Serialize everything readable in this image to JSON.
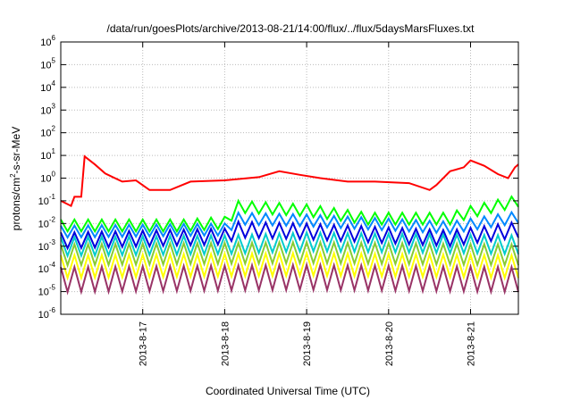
{
  "chart_data": {
    "type": "line",
    "title": "/data/run/goesPlots/archive/2013-08-21/14:00/flux/../flux/5daysMarsFluxes.txt",
    "xlabel": "Coordinated Universal Time (UTC)",
    "ylabel": "protons/cm2-s-sr-MeV",
    "ylabel_parts": {
      "pre": "protons/cm",
      "sup": "2",
      "post": "-s-sr-MeV"
    },
    "yscale": "log",
    "ylim": [
      1e-06,
      1000000.0
    ],
    "ytick_exponents": [
      -6,
      -5,
      -4,
      -3,
      -2,
      -1,
      0,
      1,
      2,
      3,
      4,
      5,
      6
    ],
    "ytick_base": "10",
    "xlim": [
      "2013-08-16T00:00",
      "2013-08-21T14:00"
    ],
    "xticks": [
      {
        "t": "2013-08-17T00:00",
        "label": "2013-8-17"
      },
      {
        "t": "2013-08-18T00:00",
        "label": "2013-8-18"
      },
      {
        "t": "2013-08-19T00:00",
        "label": "2013-8-19"
      },
      {
        "t": "2013-08-20T00:00",
        "label": "2013-8-20"
      },
      {
        "t": "2013-08-21T00:00",
        "label": "2013-8-21"
      }
    ],
    "grid": true,
    "sample_step_hours": 2,
    "series": [
      {
        "color": "#ff0000",
        "points": [
          [
            "2013-08-16T00:00",
            0.1
          ],
          [
            "2013-08-16T03:00",
            0.06
          ],
          [
            "2013-08-16T04:00",
            0.15
          ],
          [
            "2013-08-16T06:00",
            0.15
          ],
          [
            "2013-08-16T07:00",
            9
          ],
          [
            "2013-08-16T10:00",
            4
          ],
          [
            "2013-08-16T13:00",
            1.6
          ],
          [
            "2013-08-16T18:00",
            0.7
          ],
          [
            "2013-08-16T22:00",
            0.8
          ],
          [
            "2013-08-17T02:00",
            0.3
          ],
          [
            "2013-08-17T08:00",
            0.3
          ],
          [
            "2013-08-17T14:00",
            0.7
          ],
          [
            "2013-08-18T00:00",
            0.8
          ],
          [
            "2013-08-18T10:00",
            1.1
          ],
          [
            "2013-08-18T16:00",
            2.0
          ],
          [
            "2013-08-18T22:00",
            1.4
          ],
          [
            "2013-08-19T04:00",
            1.0
          ],
          [
            "2013-08-19T12:00",
            0.7
          ],
          [
            "2013-08-19T20:00",
            0.7
          ],
          [
            "2013-08-20T06:00",
            0.6
          ],
          [
            "2013-08-20T12:00",
            0.3
          ],
          [
            "2013-08-20T14:00",
            0.5
          ],
          [
            "2013-08-20T18:00",
            2.0
          ],
          [
            "2013-08-20T22:00",
            3.0
          ],
          [
            "2013-08-21T00:00",
            6.0
          ],
          [
            "2013-08-21T04:00",
            3.5
          ],
          [
            "2013-08-21T08:00",
            1.5
          ],
          [
            "2013-08-21T11:00",
            1.0
          ],
          [
            "2013-08-21T13:00",
            3.0
          ],
          [
            "2013-08-21T14:00",
            4.0
          ]
        ]
      },
      {
        "color": "#00ff00",
        "peak": [
          [
            "2013-08-16T00:00",
            0.015
          ],
          [
            "2013-08-17T12:00",
            0.015
          ],
          [
            "2013-08-18T00:00",
            0.02
          ],
          [
            "2013-08-18T04:00",
            0.1
          ],
          [
            "2013-08-19T00:00",
            0.07
          ],
          [
            "2013-08-19T18:00",
            0.03
          ],
          [
            "2013-08-20T18:00",
            0.03
          ],
          [
            "2013-08-21T00:00",
            0.06
          ],
          [
            "2013-08-21T14:00",
            0.18
          ]
        ],
        "trough_factor": 0.3
      },
      {
        "color": "#0088ff",
        "peak": [
          [
            "2013-08-16T00:00",
            0.008
          ],
          [
            "2013-08-18T00:00",
            0.01
          ],
          [
            "2013-08-18T04:00",
            0.03
          ],
          [
            "2013-08-19T00:00",
            0.025
          ],
          [
            "2013-08-20T18:00",
            0.012
          ],
          [
            "2013-08-21T14:00",
            0.035
          ]
        ],
        "trough_factor": 0.3
      },
      {
        "color": "#0000dd",
        "peak": [
          [
            "2013-08-16T00:00",
            0.004
          ],
          [
            "2013-08-18T00:00",
            0.006
          ],
          [
            "2013-08-18T04:00",
            0.012
          ],
          [
            "2013-08-19T00:00",
            0.01
          ],
          [
            "2013-08-20T18:00",
            0.005
          ],
          [
            "2013-08-21T14:00",
            0.012
          ]
        ],
        "trough_factor": 0.2
      },
      {
        "color": "#00cccc",
        "peak": [
          [
            "2013-08-16T00:00",
            0.0025
          ],
          [
            "2013-08-18T00:00",
            0.003
          ],
          [
            "2013-08-19T00:00",
            0.004
          ],
          [
            "2013-08-21T14:00",
            0.003
          ]
        ],
        "trough_factor": 0.15
      },
      {
        "color": "#88cc33",
        "peak": [
          [
            "2013-08-16T00:00",
            0.0012
          ],
          [
            "2013-08-19T00:00",
            0.0015
          ],
          [
            "2013-08-21T14:00",
            0.0012
          ]
        ],
        "trough_factor": 0.12
      },
      {
        "color": "#ffff00",
        "peak": [
          [
            "2013-08-16T00:00",
            0.0004
          ],
          [
            "2013-08-19T00:00",
            0.0005
          ],
          [
            "2013-08-21T14:00",
            0.0004
          ]
        ],
        "trough_factor": 0.1
      },
      {
        "color": "#993366",
        "peak": [
          [
            "2013-08-16T00:00",
            0.00012
          ],
          [
            "2013-08-19T00:00",
            0.00015
          ],
          [
            "2013-08-21T14:00",
            0.00012
          ]
        ],
        "trough_factor": 0.08
      }
    ]
  }
}
